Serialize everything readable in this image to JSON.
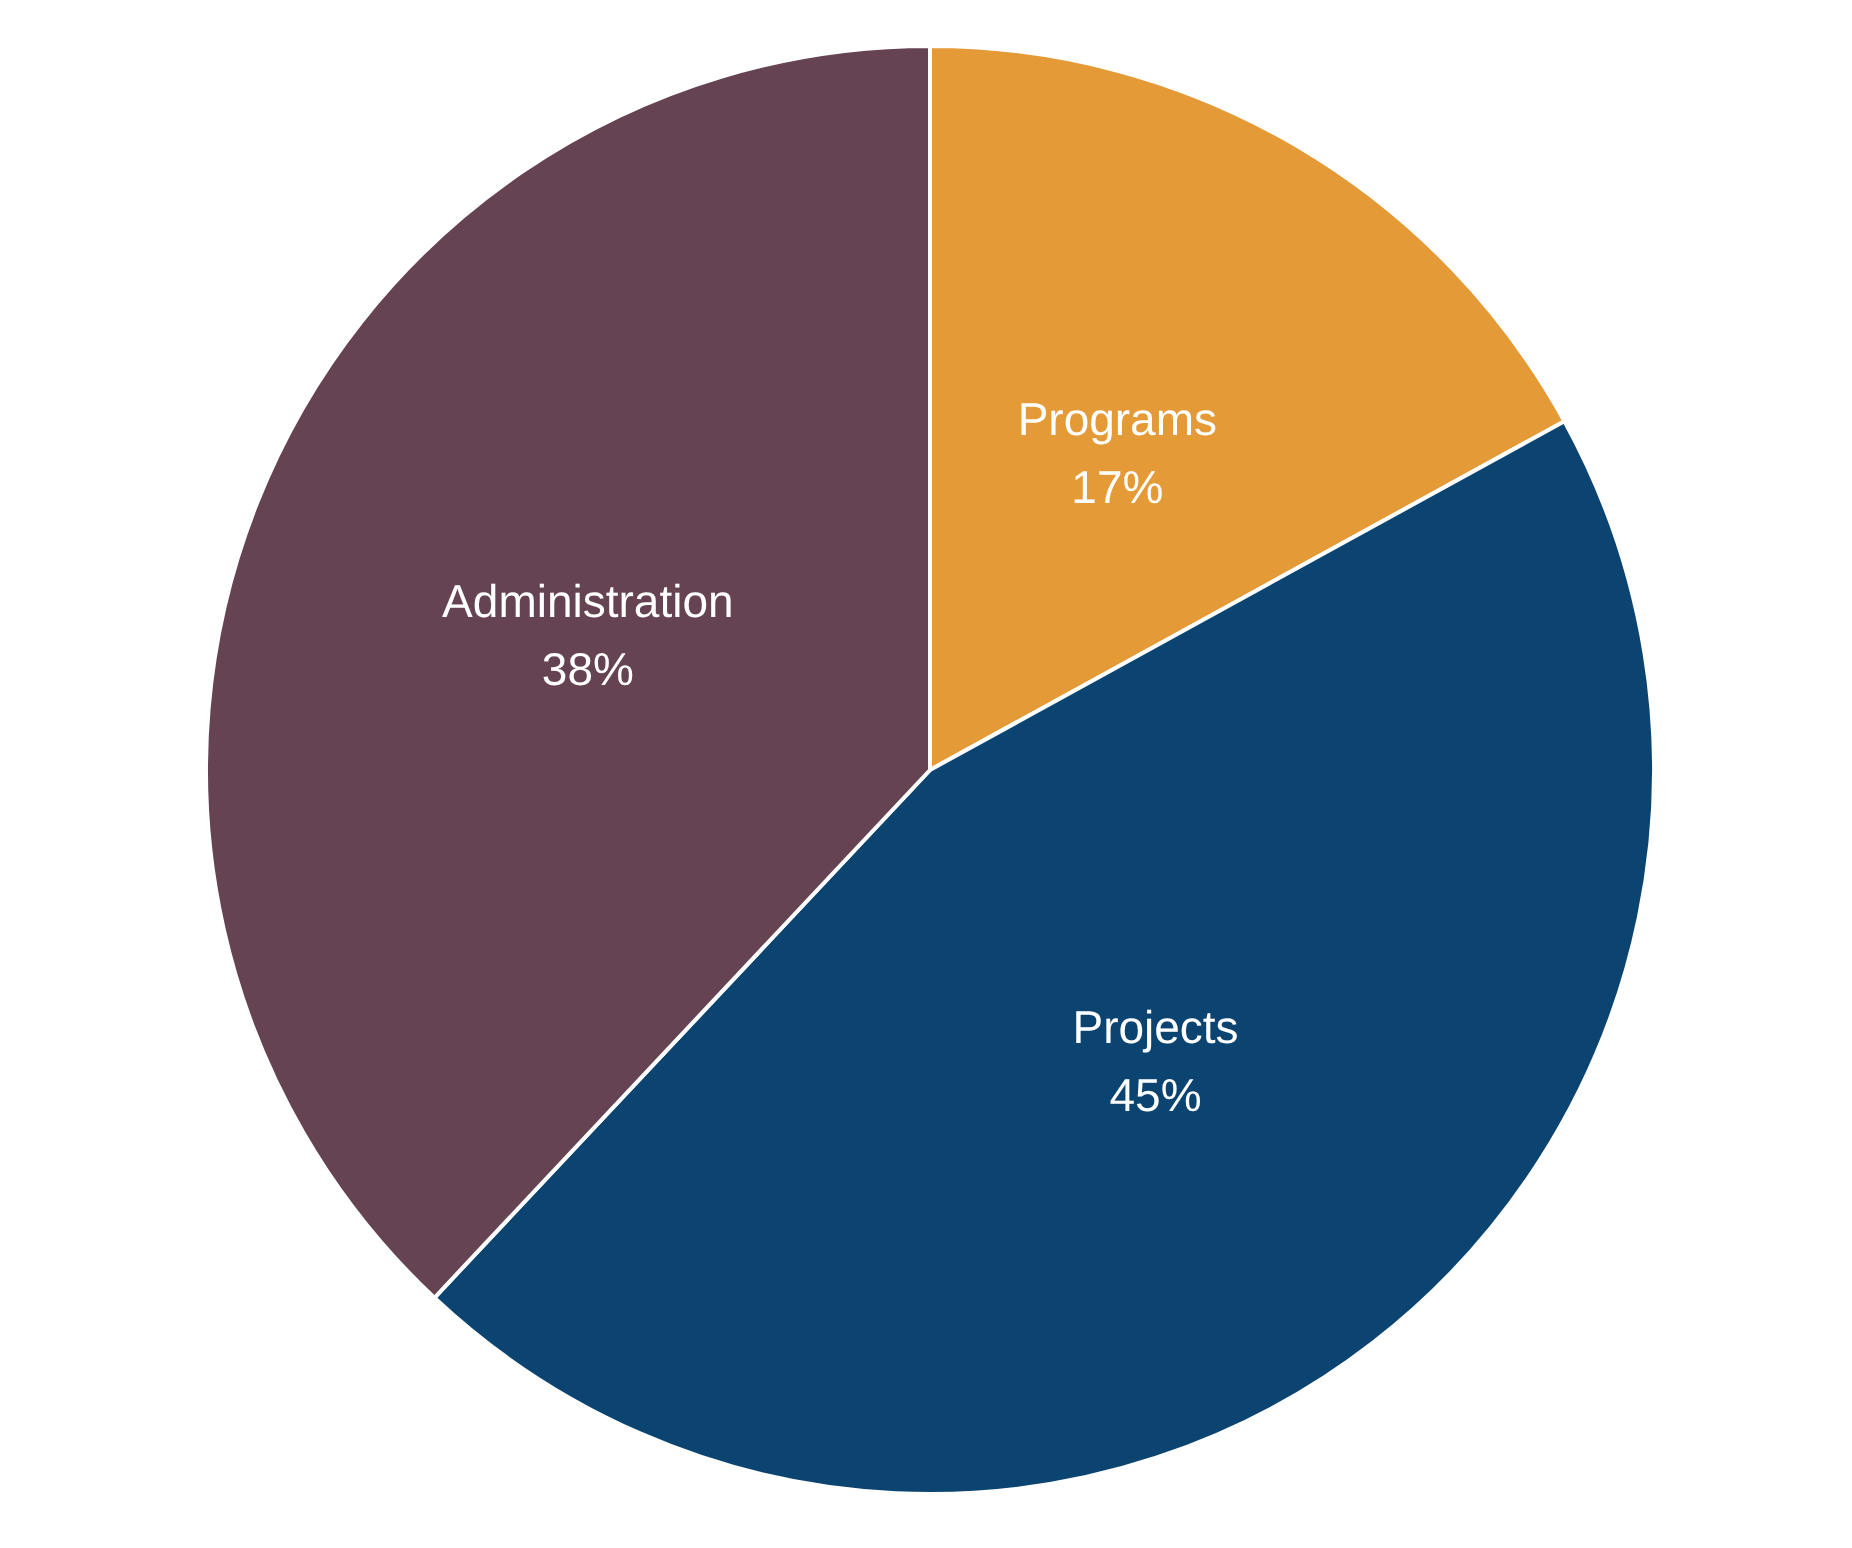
{
  "chart_data": {
    "type": "pie",
    "categories": [
      "Programs",
      "Projects",
      "Administration"
    ],
    "values": [
      17,
      45,
      38
    ],
    "value_labels": [
      "17%",
      "45%",
      "38%"
    ],
    "colors": [
      "#e39a37",
      "#0b4470",
      "#654352"
    ],
    "legend": false
  }
}
